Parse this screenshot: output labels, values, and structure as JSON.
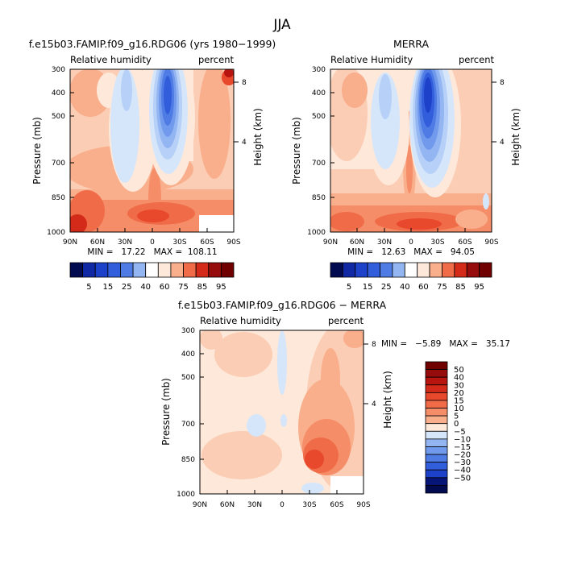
{
  "figure_title": "JJA",
  "colors": {
    "positive_palette": [
      "#FDE8DA",
      "#FBCDB4",
      "#F9AE8C",
      "#F58E68",
      "#F06B48",
      "#E8482C",
      "#D42A1A",
      "#B91510",
      "#960B0B",
      "#700000"
    ],
    "negative_palette": [
      "#D6E6FA",
      "#B6D0F7",
      "#93B6F2",
      "#7199EC",
      "#4F7CE4",
      "#325EDB",
      "#1D41C8",
      "#1128A4",
      "#081578",
      "#020A50"
    ],
    "white": "#FFFFFF"
  },
  "chart_data": [
    {
      "type": "contour",
      "title": "f.e15b03.FAMIP.f09_g16.RDG06 (yrs 1980−1999)",
      "subtitle_left": "Relative humidity",
      "subtitle_right": "percent",
      "xlabel": "",
      "ylabel": "Pressure (mb)",
      "ylabel_right": "Height (km)",
      "x_ticks": [
        "90N",
        "60N",
        "30N",
        "0",
        "30S",
        "60S",
        "90S"
      ],
      "x_range": [
        90,
        -90
      ],
      "y_ticks": [
        "300",
        "400",
        "500",
        "700",
        "850",
        "1000"
      ],
      "y_range": [
        300,
        1000
      ],
      "y_right_ticks": [
        "8",
        "4"
      ],
      "stats": "MIN =   17.22   MAX =  108.11",
      "min": 17.22,
      "max": 108.11,
      "colorbar_levels": [
        "5",
        "15",
        "25",
        "40",
        "60",
        "75",
        "85",
        "95"
      ]
    },
    {
      "type": "contour",
      "title": "MERRA",
      "subtitle_left": "Relative Humidity",
      "subtitle_right": "percent",
      "xlabel": "",
      "ylabel": "Pressure (mb)",
      "ylabel_right": "Height (km)",
      "x_ticks": [
        "90N",
        "60N",
        "30N",
        "0",
        "30S",
        "60S",
        "90S"
      ],
      "x_range": [
        90,
        -90
      ],
      "y_ticks": [
        "300",
        "400",
        "500",
        "700",
        "850",
        "1000"
      ],
      "y_range": [
        300,
        1000
      ],
      "y_right_ticks": [
        "8",
        "4"
      ],
      "stats": "MIN =   12.63   MAX =   94.05",
      "min": 12.63,
      "max": 94.05,
      "colorbar_levels": [
        "5",
        "15",
        "25",
        "40",
        "60",
        "75",
        "85",
        "95"
      ]
    },
    {
      "type": "contour",
      "title": "f.e15b03.FAMIP.f09_g16.RDG06 − MERRA",
      "subtitle_left": "Relative humidity",
      "subtitle_right": "percent",
      "xlabel": "",
      "ylabel": "Pressure (mb)",
      "ylabel_right": "Height (km)",
      "x_ticks": [
        "90N",
        "60N",
        "30N",
        "0",
        "30S",
        "60S",
        "90S"
      ],
      "x_range": [
        90,
        -90
      ],
      "y_ticks": [
        "300",
        "400",
        "500",
        "700",
        "850",
        "1000"
      ],
      "y_range": [
        300,
        1000
      ],
      "y_right_ticks": [
        "8",
        "4"
      ],
      "stats": "MIN =   −5.89   MAX =   35.17",
      "min": -5.89,
      "max": 35.17,
      "colorbar_levels": [
        "50",
        "40",
        "30",
        "20",
        "15",
        "10",
        "5",
        "0",
        "−5",
        "−10",
        "−15",
        "−20",
        "−30",
        "−40",
        "−50"
      ]
    }
  ]
}
